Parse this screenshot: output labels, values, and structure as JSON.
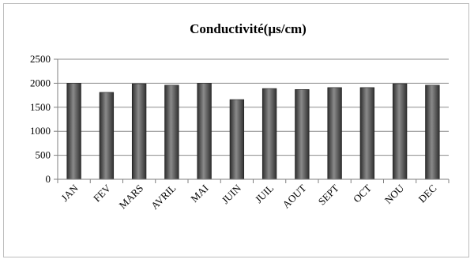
{
  "chart_data": {
    "type": "bar",
    "title": "Conductivité(µs/cm)",
    "xlabel": "",
    "ylabel": "",
    "categories": [
      "JAN",
      "FEV",
      "MARS",
      "AVRIL",
      "MAI",
      "JUIN",
      "JUIL",
      "AOUT",
      "SEPT",
      "OCT",
      "NOU",
      "DEC"
    ],
    "values": [
      2000,
      1810,
      1990,
      1960,
      2000,
      1660,
      1890,
      1870,
      1910,
      1910,
      1990,
      1960
    ],
    "ylim": [
      0,
      2500
    ],
    "yticks": [
      0,
      500,
      1000,
      1500,
      2000,
      2500
    ],
    "grid": true,
    "legend": "none",
    "bar_color": "#4a4a4a"
  }
}
